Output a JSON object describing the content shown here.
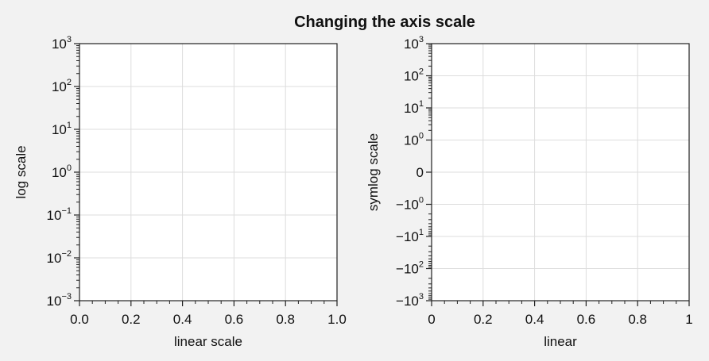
{
  "figure": {
    "title": "Changing the axis scale",
    "background_color": "#f2f2f2",
    "axes_face_color": "#ffffff",
    "grid_color": "#dddddd"
  },
  "chart_data": [
    {
      "type": "line",
      "series": [],
      "xlabel": "linear scale",
      "ylabel": "log scale",
      "xscale": "linear",
      "yscale": "log",
      "xlim": [
        0,
        1
      ],
      "ylim": [
        0.001,
        1000
      ],
      "xticks": [
        {
          "value": 0.0,
          "label": "0.0"
        },
        {
          "value": 0.2,
          "label": "0.2"
        },
        {
          "value": 0.4,
          "label": "0.4"
        },
        {
          "value": 0.6,
          "label": "0.6"
        },
        {
          "value": 0.8,
          "label": "0.8"
        },
        {
          "value": 1.0,
          "label": "1.0"
        }
      ],
      "yticks": [
        {
          "value": 0.001,
          "base": "10",
          "exp": "−3"
        },
        {
          "value": 0.01,
          "base": "10",
          "exp": "−2"
        },
        {
          "value": 0.1,
          "base": "10",
          "exp": "−1"
        },
        {
          "value": 1,
          "base": "10",
          "exp": "0"
        },
        {
          "value": 10,
          "base": "10",
          "exp": "1"
        },
        {
          "value": 100,
          "base": "10",
          "exp": "2"
        },
        {
          "value": 1000,
          "base": "10",
          "exp": "3"
        }
      ],
      "grid": true
    },
    {
      "type": "line",
      "series": [],
      "xlabel": "linear",
      "ylabel": "symlog scale",
      "xscale": "linear",
      "yscale": "symlog",
      "linthresh": 1,
      "xlim": [
        0,
        1
      ],
      "ylim": [
        -1000,
        1000
      ],
      "xticks": [
        {
          "value": 0,
          "label": "0"
        },
        {
          "value": 0.2,
          "label": "0.2"
        },
        {
          "value": 0.4,
          "label": "0.4"
        },
        {
          "value": 0.6,
          "label": "0.6"
        },
        {
          "value": 0.8,
          "label": "0.8"
        },
        {
          "value": 1,
          "label": "1"
        }
      ],
      "yticks": [
        {
          "value": -1000,
          "base": "−10",
          "exp": "3"
        },
        {
          "value": -100,
          "base": "−10",
          "exp": "2"
        },
        {
          "value": -10,
          "base": "−10",
          "exp": "1"
        },
        {
          "value": -1,
          "base": "−10",
          "exp": "0"
        },
        {
          "value": 0,
          "base": "0",
          "exp": ""
        },
        {
          "value": 1,
          "base": "10",
          "exp": "0"
        },
        {
          "value": 10,
          "base": "10",
          "exp": "1"
        },
        {
          "value": 100,
          "base": "10",
          "exp": "2"
        },
        {
          "value": 1000,
          "base": "10",
          "exp": "3"
        }
      ],
      "grid": true
    }
  ]
}
